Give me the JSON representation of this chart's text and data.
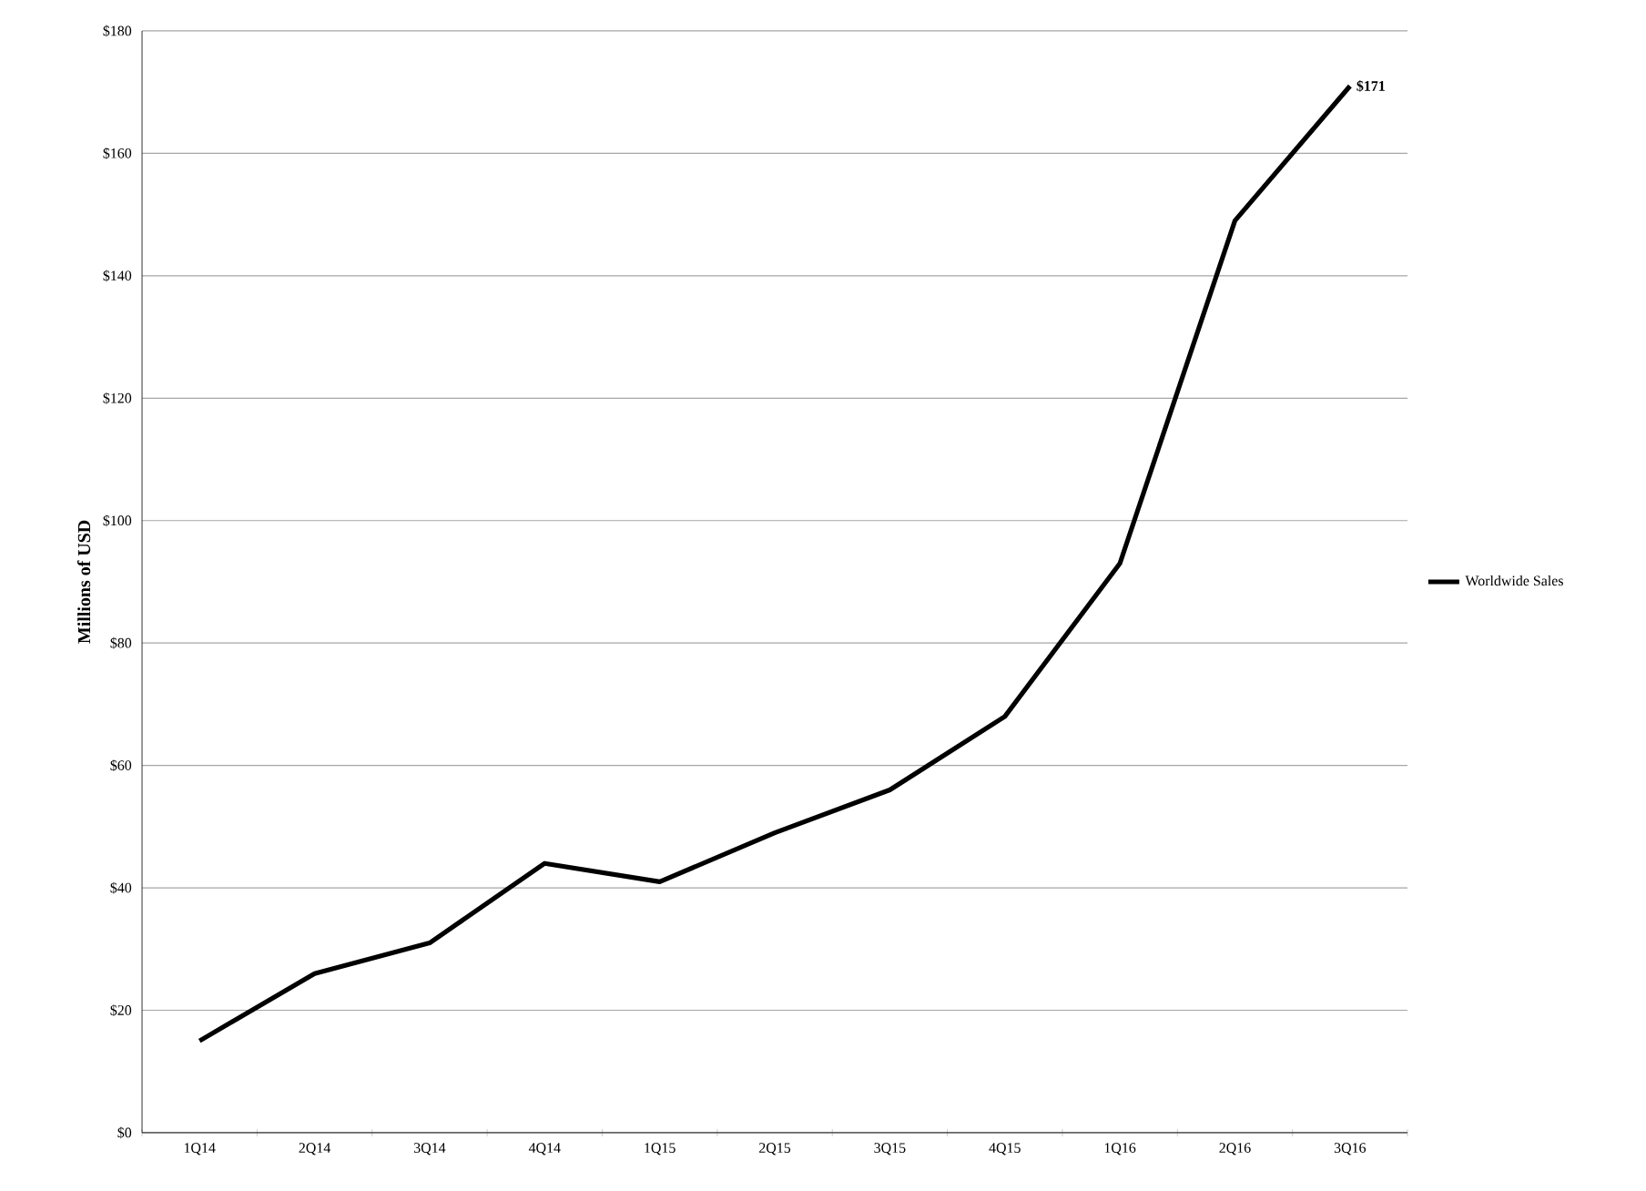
{
  "chart_data": {
    "type": "line",
    "ylabel": "Millions of USD",
    "categories": [
      "1Q14",
      "2Q14",
      "3Q14",
      "4Q14",
      "1Q15",
      "2Q15",
      "3Q15",
      "4Q15",
      "1Q16",
      "2Q16",
      "3Q16"
    ],
    "series": [
      {
        "name": "Worldwide Sales",
        "color": "#000000",
        "values": [
          15,
          26,
          31,
          44,
          41,
          49,
          56,
          68,
          93,
          149,
          171
        ]
      }
    ],
    "ylim": [
      0,
      180
    ],
    "yticks": [
      {
        "value": 0,
        "label": "$0"
      },
      {
        "value": 20,
        "label": "$20"
      },
      {
        "value": 40,
        "label": "$40"
      },
      {
        "value": 60,
        "label": "$60"
      },
      {
        "value": 80,
        "label": "$80"
      },
      {
        "value": 100,
        "label": "$100"
      },
      {
        "value": 120,
        "label": "$120"
      },
      {
        "value": 140,
        "label": "$140"
      },
      {
        "value": 160,
        "label": "$160"
      },
      {
        "value": 180,
        "label": "$180"
      }
    ],
    "grid": "y",
    "legend": "right",
    "marker": "none",
    "line_style": "solid",
    "annotations": [
      {
        "text": "$171",
        "x": "3Q16",
        "y": 171
      }
    ]
  }
}
